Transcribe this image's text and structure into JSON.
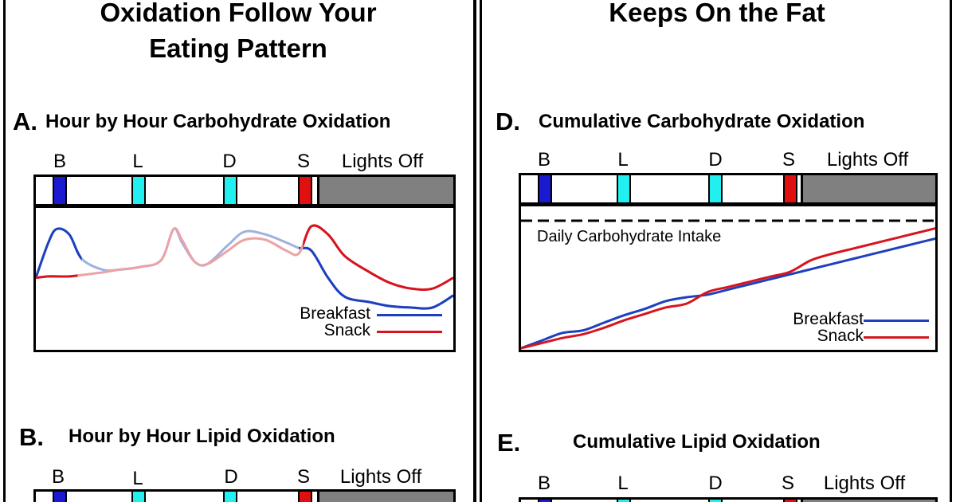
{
  "colors": {
    "breakfast": "#1e3fbf",
    "snack": "#d7141e",
    "breakfast_light": "#9fb1e0",
    "snack_light": "#eba3a6",
    "mark_b": "#1a1ad0",
    "mark_l": "#22f0f0",
    "mark_d": "#22f0f0",
    "mark_s": "#e01010",
    "lights_off": "#808080"
  },
  "left_column": {
    "title_line1": "Oxidation Follow Your",
    "title_line2": "Eating Pattern"
  },
  "right_column": {
    "title_line1": "Keeps On the Fat"
  },
  "meal_labels": {
    "b": "B",
    "l": "L",
    "d": "D",
    "s": "S",
    "lights_off": "Lights Off"
  },
  "legend": {
    "breakfast": "Breakfast",
    "snack": "Snack"
  },
  "panels": {
    "a": {
      "letter": "A.",
      "title": "Hour by Hour Carbohydrate Oxidation"
    },
    "b": {
      "letter": "B.",
      "title": "Hour by Hour Lipid Oxidation"
    },
    "d": {
      "letter": "D.",
      "title": "Cumulative Carbohydrate Oxidation",
      "reference_label": "Daily Carbohydrate Intake"
    },
    "e": {
      "letter": "E.",
      "title": "Cumulative Lipid Oxidation"
    }
  },
  "chart_data": [
    {
      "id": "A",
      "type": "line",
      "title": "Hour by Hour Carbohydrate Oxidation",
      "xlabel": "",
      "ylabel": "",
      "xlim": [
        0,
        100
      ],
      "ylim": [
        0,
        100
      ],
      "events": [
        "B",
        "L",
        "D",
        "S",
        "Lights Off"
      ],
      "series": [
        {
          "name": "Breakfast",
          "x": [
            0,
            3,
            5,
            8,
            11,
            16,
            20,
            25,
            30,
            33,
            35,
            38,
            41,
            46,
            50,
            55,
            60,
            63,
            66,
            70,
            74,
            80,
            85,
            90,
            95,
            100
          ],
          "y": [
            52,
            78,
            88,
            84,
            66,
            58,
            58,
            60,
            65,
            88,
            78,
            64,
            62,
            76,
            86,
            84,
            78,
            74,
            72,
            52,
            38,
            34,
            31,
            30,
            30,
            39
          ]
        },
        {
          "name": "Snack",
          "x": [
            0,
            3,
            5,
            8,
            11,
            16,
            20,
            25,
            30,
            33,
            35,
            38,
            41,
            46,
            50,
            55,
            60,
            63,
            66,
            70,
            74,
            80,
            85,
            90,
            95,
            100
          ],
          "y": [
            52,
            53,
            53,
            53,
            54,
            56,
            58,
            60,
            65,
            88,
            80,
            64,
            62,
            72,
            80,
            80,
            72,
            70,
            90,
            84,
            68,
            56,
            48,
            44,
            44,
            52
          ]
        }
      ]
    },
    {
      "id": "D",
      "type": "line",
      "title": "Cumulative Carbohydrate Oxidation",
      "xlabel": "",
      "ylabel": "",
      "xlim": [
        0,
        100
      ],
      "ylim": [
        0,
        100
      ],
      "events": [
        "B",
        "L",
        "D",
        "S",
        "Lights Off"
      ],
      "reference_line": {
        "label": "Daily Carbohydrate Intake",
        "y": 100
      },
      "series": [
        {
          "name": "Breakfast",
          "x": [
            0,
            5,
            10,
            15,
            20,
            25,
            30,
            35,
            40,
            45,
            50,
            55,
            60,
            65,
            70,
            75,
            80,
            85,
            90,
            95,
            100
          ],
          "y": [
            0,
            6,
            12,
            14,
            20,
            26,
            31,
            37,
            40,
            42,
            46,
            50,
            54,
            58,
            62,
            66,
            70,
            74,
            78,
            82,
            86
          ]
        },
        {
          "name": "Snack",
          "x": [
            0,
            5,
            10,
            15,
            20,
            25,
            30,
            35,
            40,
            45,
            50,
            55,
            60,
            65,
            70,
            75,
            80,
            85,
            90,
            95,
            100
          ],
          "y": [
            0,
            4,
            8,
            11,
            16,
            22,
            27,
            32,
            35,
            44,
            48,
            52,
            56,
            60,
            69,
            74,
            78,
            82,
            86,
            90,
            94
          ]
        }
      ]
    }
  ]
}
